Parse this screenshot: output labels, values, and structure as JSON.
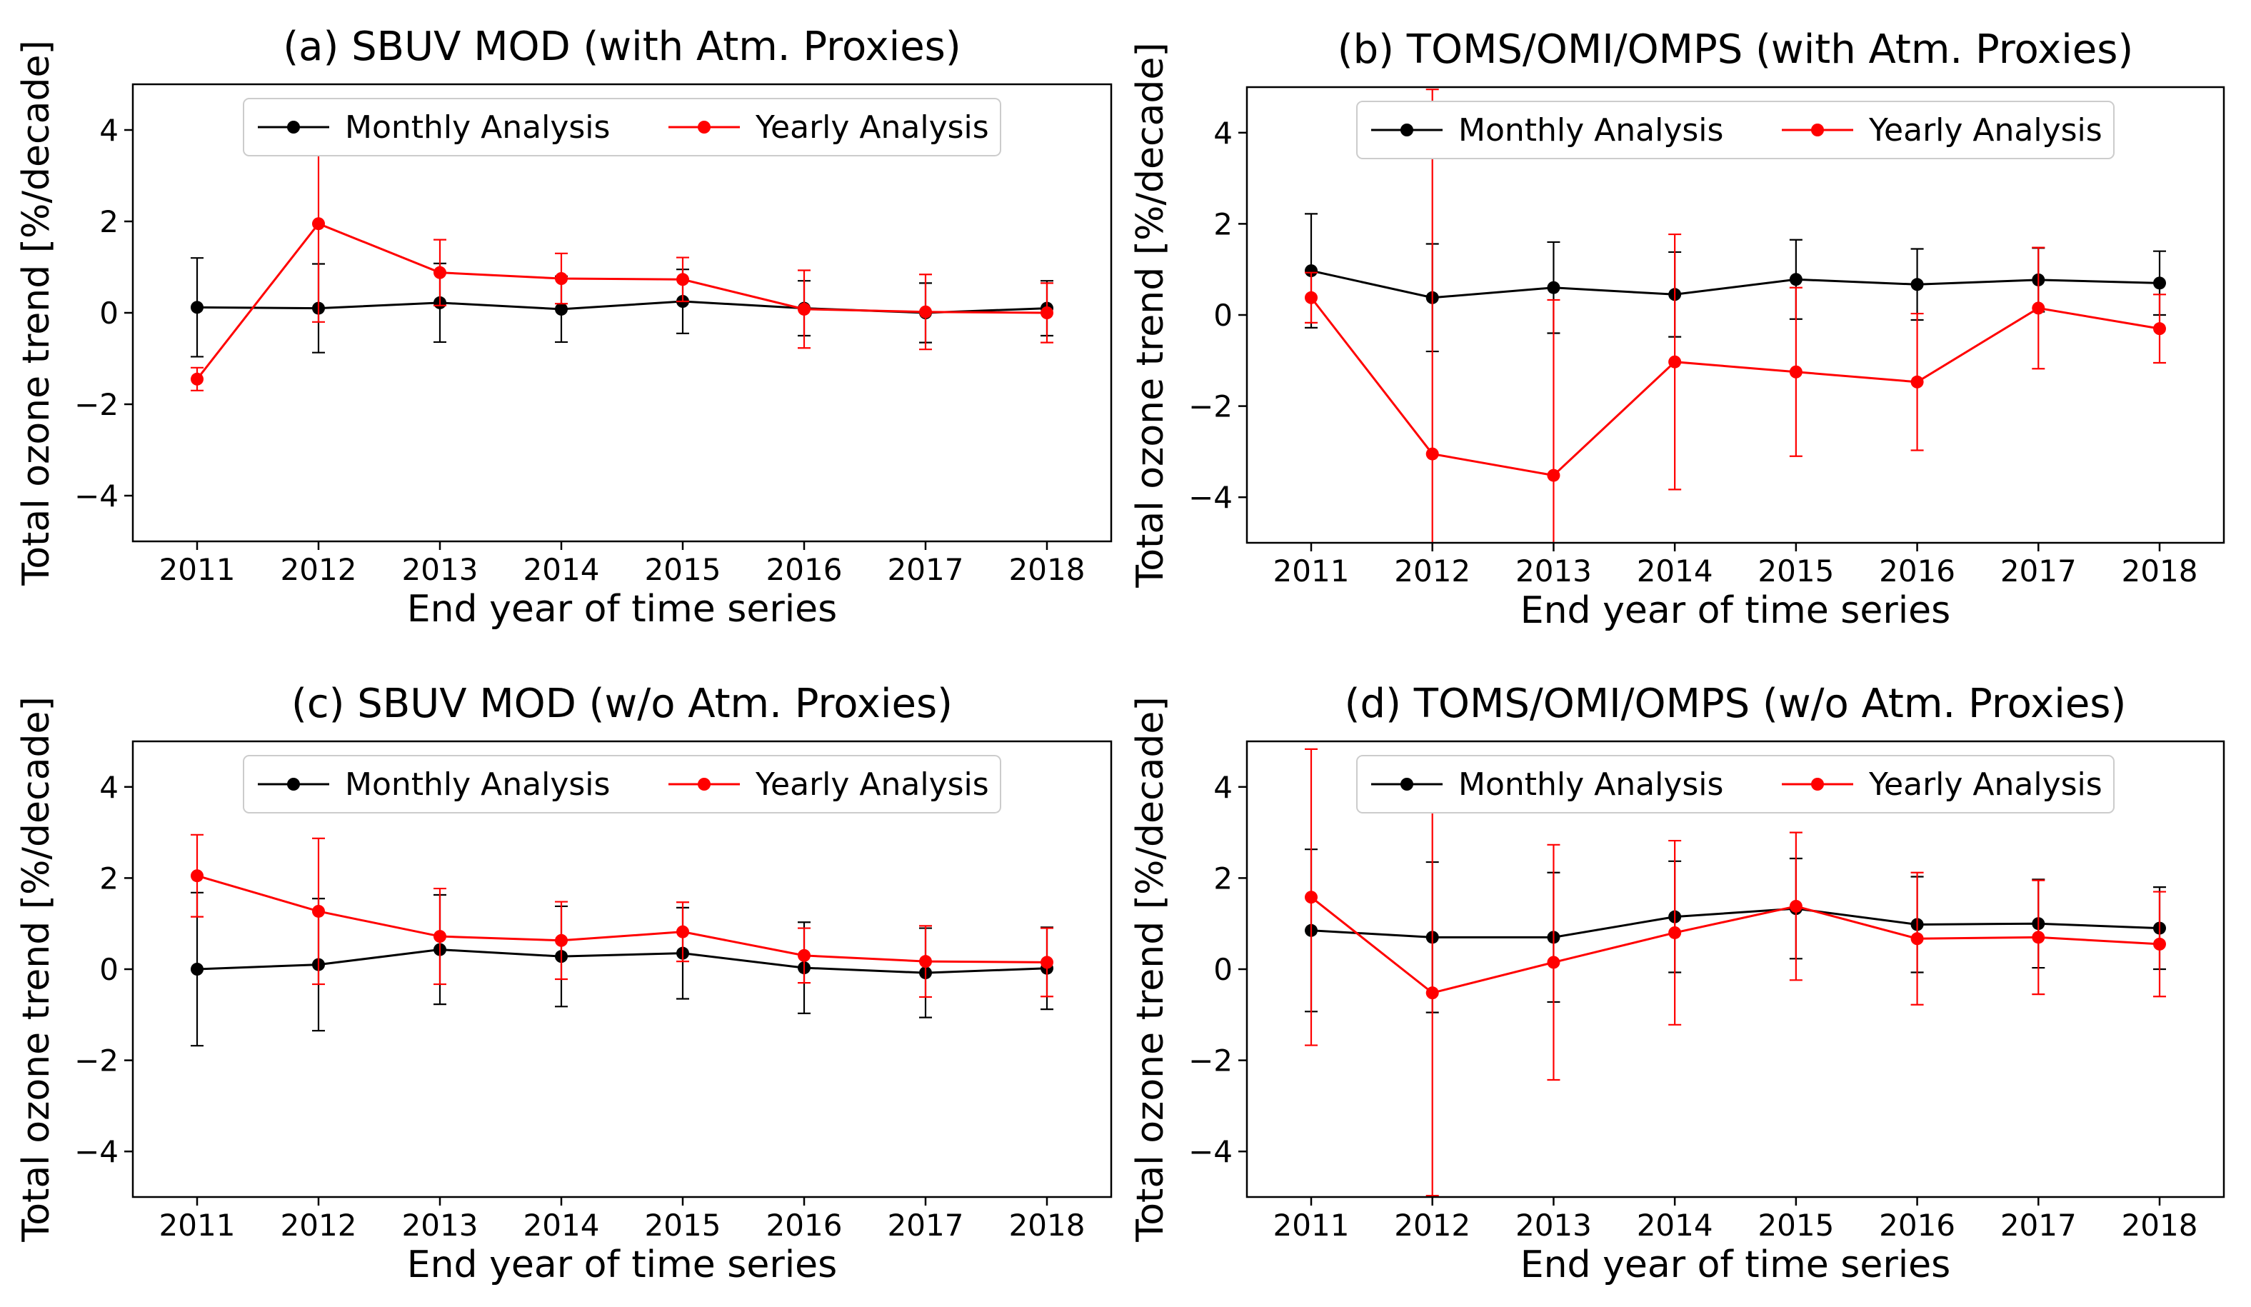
{
  "chart_data": [
    {
      "id": "a",
      "type": "line",
      "title": "(a) SBUV MOD (with Atm. Proxies)",
      "xlabel": "End year of time series",
      "ylabel": "Total ozone trend [%/decade]",
      "categories": [
        "2011",
        "2012",
        "2013",
        "2014",
        "2015",
        "2016",
        "2017",
        "2018"
      ],
      "ylim": [
        -5,
        5
      ],
      "yticks": [
        -4,
        -2,
        0,
        2,
        4
      ],
      "ytick_labels": [
        "−4",
        "−2",
        "0",
        "2",
        "4"
      ],
      "legend_position": "top-center",
      "series": [
        {
          "name": "Monthly Analysis",
          "color": "#000000",
          "values": [
            0.12,
            0.1,
            0.22,
            0.08,
            0.25,
            0.1,
            0.0,
            0.1
          ],
          "errors": [
            1.08,
            0.97,
            0.86,
            0.72,
            0.7,
            0.6,
            0.65,
            0.6
          ]
        },
        {
          "name": "Yearly Analysis",
          "color": "#ff0000",
          "values": [
            -1.45,
            1.95,
            0.88,
            0.75,
            0.73,
            0.08,
            0.02,
            0.0
          ],
          "errors": [
            0.25,
            2.15,
            0.72,
            0.55,
            0.48,
            0.85,
            0.82,
            0.65
          ]
        }
      ]
    },
    {
      "id": "b",
      "type": "line",
      "title": "(b) TOMS/OMI/OMPS (with Atm. Proxies)",
      "xlabel": "End year of time series",
      "ylabel": "Total ozone trend [%/decade]",
      "categories": [
        "2011",
        "2012",
        "2013",
        "2014",
        "2015",
        "2016",
        "2017",
        "2018"
      ],
      "ylim": [
        -5,
        5
      ],
      "yticks": [
        -4,
        -2,
        0,
        2,
        4
      ],
      "ytick_labels": [
        "−4",
        "−2",
        "0",
        "2",
        "4"
      ],
      "legend_position": "top-center",
      "series": [
        {
          "name": "Monthly Analysis",
          "color": "#000000",
          "values": [
            0.97,
            0.38,
            0.6,
            0.45,
            0.78,
            0.67,
            0.77,
            0.7
          ],
          "errors": [
            1.25,
            1.18,
            1.0,
            0.93,
            0.87,
            0.78,
            0.7,
            0.7
          ]
        },
        {
          "name": "Yearly Analysis",
          "color": "#ff0000",
          "values": [
            0.38,
            -3.05,
            -3.52,
            -1.03,
            -1.25,
            -1.47,
            0.15,
            -0.3
          ],
          "errors": [
            0.55,
            8.0,
            3.85,
            2.8,
            1.85,
            1.5,
            1.33,
            0.75
          ]
        }
      ]
    },
    {
      "id": "c",
      "type": "line",
      "title": "(c) SBUV MOD (w/o Atm. Proxies)",
      "xlabel": "End year of time series",
      "ylabel": "Total ozone trend [%/decade]",
      "categories": [
        "2011",
        "2012",
        "2013",
        "2014",
        "2015",
        "2016",
        "2017",
        "2018"
      ],
      "ylim": [
        -5,
        5
      ],
      "yticks": [
        -4,
        -2,
        0,
        2,
        4
      ],
      "ytick_labels": [
        "−4",
        "−2",
        "0",
        "2",
        "4"
      ],
      "legend_position": "top-center",
      "series": [
        {
          "name": "Monthly Analysis",
          "color": "#000000",
          "values": [
            0.0,
            0.1,
            0.43,
            0.28,
            0.35,
            0.03,
            -0.08,
            0.02
          ],
          "errors": [
            1.68,
            1.45,
            1.2,
            1.1,
            1.0,
            1.0,
            0.98,
            0.9
          ]
        },
        {
          "name": "Yearly Analysis",
          "color": "#ff0000",
          "values": [
            2.05,
            1.27,
            0.72,
            0.63,
            0.82,
            0.3,
            0.17,
            0.15
          ],
          "errors": [
            0.9,
            1.6,
            1.05,
            0.85,
            0.65,
            0.6,
            0.78,
            0.75
          ]
        }
      ]
    },
    {
      "id": "d",
      "type": "line",
      "title": "(d) TOMS/OMI/OMPS (w/o Atm. Proxies)",
      "xlabel": "End year of time series",
      "ylabel": "Total ozone trend [%/decade]",
      "categories": [
        "2011",
        "2012",
        "2013",
        "2014",
        "2015",
        "2016",
        "2017",
        "2018"
      ],
      "ylim": [
        -5,
        5
      ],
      "yticks": [
        -4,
        -2,
        0,
        2,
        4
      ],
      "ytick_labels": [
        "−4",
        "−2",
        "0",
        "2",
        "4"
      ],
      "legend_position": "top-center",
      "series": [
        {
          "name": "Monthly Analysis",
          "color": "#000000",
          "values": [
            0.85,
            0.7,
            0.7,
            1.15,
            1.33,
            0.98,
            1.0,
            0.9
          ],
          "errors": [
            1.78,
            1.65,
            1.42,
            1.22,
            1.1,
            1.05,
            0.97,
            0.9
          ]
        },
        {
          "name": "Yearly Analysis",
          "color": "#ff0000",
          "values": [
            1.58,
            -0.52,
            0.15,
            0.8,
            1.38,
            0.67,
            0.7,
            0.55
          ],
          "errors": [
            3.25,
            4.45,
            2.58,
            2.02,
            1.62,
            1.45,
            1.25,
            1.15
          ]
        }
      ]
    }
  ]
}
